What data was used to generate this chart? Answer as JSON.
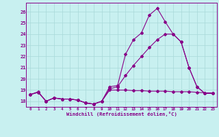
{
  "title": "",
  "xlabel": "Windchill (Refroidissement éolien,°C)",
  "bg_color": "#c8f0f0",
  "line_color": "#880088",
  "grid_color": "#a8d8d8",
  "x_min": -0.5,
  "x_max": 23.5,
  "y_min": 17.5,
  "y_max": 26.8,
  "y_ticks": [
    18,
    19,
    20,
    21,
    22,
    23,
    24,
    25,
    26
  ],
  "x_ticks": [
    0,
    1,
    2,
    3,
    4,
    5,
    6,
    7,
    8,
    9,
    10,
    11,
    12,
    13,
    14,
    15,
    16,
    17,
    18,
    19,
    20,
    21,
    22,
    23
  ],
  "series1_x": [
    0,
    1,
    2,
    3,
    4,
    5,
    6,
    7,
    8,
    9,
    10,
    11,
    12,
    13,
    14,
    15,
    16,
    17,
    18,
    19,
    20,
    21,
    22,
    23
  ],
  "series1_y": [
    18.6,
    18.8,
    18.0,
    18.3,
    18.2,
    18.2,
    18.1,
    17.85,
    17.75,
    18.0,
    19.3,
    19.4,
    22.2,
    23.5,
    24.1,
    25.7,
    26.3,
    25.1,
    24.0,
    23.3,
    21.0,
    19.3,
    18.7,
    18.7
  ],
  "series2_x": [
    0,
    1,
    2,
    3,
    4,
    5,
    6,
    7,
    8,
    9,
    10,
    11,
    12,
    13,
    14,
    15,
    16,
    17,
    18,
    19,
    20,
    21,
    22,
    23
  ],
  "series2_y": [
    18.6,
    18.8,
    18.0,
    18.3,
    18.2,
    18.2,
    18.1,
    17.85,
    17.75,
    18.0,
    19.1,
    19.3,
    20.3,
    21.2,
    22.0,
    22.8,
    23.5,
    24.0,
    24.0,
    23.3,
    21.0,
    19.3,
    18.7,
    18.7
  ],
  "series3_x": [
    0,
    1,
    2,
    3,
    4,
    5,
    6,
    7,
    8,
    9,
    10,
    11,
    12,
    13,
    14,
    15,
    16,
    17,
    18,
    19,
    20,
    21,
    22,
    23
  ],
  "series3_y": [
    18.6,
    18.85,
    18.0,
    18.3,
    18.2,
    18.2,
    18.1,
    17.85,
    17.75,
    18.0,
    19.0,
    19.0,
    19.0,
    18.95,
    18.95,
    18.9,
    18.9,
    18.9,
    18.85,
    18.85,
    18.85,
    18.8,
    18.75,
    18.75
  ]
}
